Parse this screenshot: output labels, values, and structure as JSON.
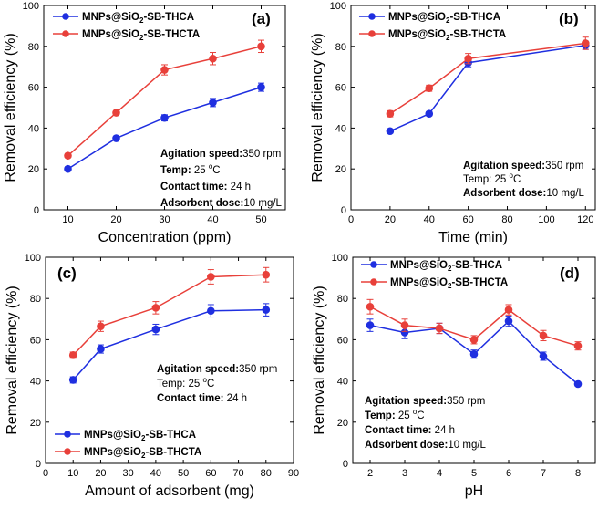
{
  "colors": {
    "thca": "#1f2fe0",
    "thcta": "#e8403a"
  },
  "chart_data": [
    {
      "id": "a",
      "type": "line",
      "panel_label": "(a)",
      "xlabel": "Concentration (ppm)",
      "ylabel": "Removal efficiency (%)",
      "xlim": [
        5,
        55
      ],
      "ylim": [
        0,
        100
      ],
      "xticks": [
        10,
        20,
        30,
        40,
        50
      ],
      "yticks": [
        0,
        20,
        40,
        60,
        80,
        100
      ],
      "x": [
        10,
        20,
        30,
        40,
        50
      ],
      "series": [
        {
          "name_pre": "MNPs@SiO",
          "name_sub": "2",
          "name_post": "-SB-THCA",
          "color_key": "thca",
          "values": [
            20,
            35,
            45,
            52.5,
            60
          ],
          "errors": [
            1,
            1,
            1.5,
            2,
            2
          ]
        },
        {
          "name_pre": "MNPs@SiO",
          "name_sub": "2",
          "name_post": "-SB-THCTA",
          "color_key": "thcta",
          "values": [
            26.5,
            47.5,
            68.5,
            74,
            80
          ],
          "errors": [
            1,
            1,
            2.5,
            3,
            3
          ]
        }
      ],
      "legend": "top-left",
      "conditions": [
        {
          "label": "Agitation speed:",
          "value": "350 rpm"
        },
        {
          "label": "Temp:",
          "value": " 25 ",
          "deg": "o",
          "unit": "C"
        },
        {
          "label": "Contact time:",
          "value": " 24 h"
        },
        {
          "label": "Adsorbent dose:",
          "value": "10 mg/L"
        }
      ]
    },
    {
      "id": "b",
      "type": "line",
      "panel_label": "(b)",
      "xlabel": "Time (min)",
      "ylabel": "Removal efficiency (%)",
      "xlim": [
        0,
        125
      ],
      "ylim": [
        0,
        100
      ],
      "xticks": [
        0,
        20,
        40,
        60,
        80,
        100,
        120
      ],
      "yticks": [
        0,
        20,
        40,
        60,
        80,
        100
      ],
      "x": [
        20,
        40,
        60,
        120
      ],
      "series": [
        {
          "name_pre": "MNPs@SiO",
          "name_sub": "2",
          "name_post": "-SB-THCA",
          "color_key": "thca",
          "values": [
            38.5,
            47,
            72,
            80.5
          ],
          "errors": [
            1,
            1,
            2,
            2
          ]
        },
        {
          "name_pre": "MNPs@SiO",
          "name_sub": "2",
          "name_post": "-SB-THCTA",
          "color_key": "thcta",
          "values": [
            47,
            59.5,
            74,
            81.5
          ],
          "errors": [
            1.5,
            1.5,
            2.5,
            3
          ]
        }
      ],
      "legend": "top-left",
      "conditions": [
        {
          "label": "Agitation speed:",
          "value": "350 rpm"
        },
        {
          "label": "Temp:",
          "value": " 25 ",
          "deg": "o",
          "unit": "C",
          "plain_label": true
        },
        {
          "label": "Adsorbent dose:",
          "value": "10 mg/L"
        }
      ]
    },
    {
      "id": "c",
      "type": "line",
      "panel_label": "(c)",
      "xlabel": "Amount of adsorbent (mg)",
      "ylabel": "Removal efficiency (%)",
      "xlim": [
        0,
        90
      ],
      "ylim": [
        0,
        100
      ],
      "xticks": [
        0,
        10,
        20,
        30,
        40,
        50,
        60,
        70,
        80,
        90
      ],
      "yticks": [
        0,
        20,
        40,
        60,
        80,
        100
      ],
      "x": [
        10,
        20,
        40,
        60,
        80
      ],
      "series": [
        {
          "name_pre": "MNPs@SiO",
          "name_sub": "2",
          "name_post": "-SB-THCA",
          "color_key": "thca",
          "values": [
            40.5,
            55.5,
            65,
            74,
            74.5
          ],
          "errors": [
            1.5,
            2,
            2.5,
            3,
            3
          ]
        },
        {
          "name_pre": "MNPs@SiO",
          "name_sub": "2",
          "name_post": "-SB-THCTA",
          "color_key": "thcta",
          "values": [
            52.5,
            66.5,
            75.5,
            90.5,
            91.5
          ],
          "errors": [
            1.5,
            2.5,
            3,
            3.5,
            3.5
          ]
        }
      ],
      "legend": "bottom-left",
      "conditions": [
        {
          "label": "Agitation speed:",
          "value": "350 rpm"
        },
        {
          "label": "Temp:",
          "value": " 25 ",
          "deg": "o",
          "unit": "C",
          "plain_label": true
        },
        {
          "label": "Contact time:",
          "value": " 24 h"
        }
      ]
    },
    {
      "id": "d",
      "type": "line",
      "panel_label": "(d)",
      "xlabel": "pH",
      "ylabel": "Removal efficiency (%)",
      "xlim": [
        1.5,
        8.5
      ],
      "ylim": [
        0,
        100
      ],
      "xticks": [
        2,
        3,
        4,
        5,
        6,
        7,
        8
      ],
      "yticks": [
        0,
        20,
        40,
        60,
        80,
        100
      ],
      "x": [
        2,
        3,
        4,
        5,
        6,
        7,
        8
      ],
      "series": [
        {
          "name_pre": "MNPs@SiO",
          "name_sub": "2",
          "name_post": "-SB-THCA",
          "color_key": "thca",
          "values": [
            67,
            63.5,
            65.5,
            53,
            69,
            52,
            38.5
          ],
          "errors": [
            3,
            3,
            2.5,
            2,
            2.5,
            2,
            1
          ]
        },
        {
          "name_pre": "MNPs@SiO",
          "name_sub": "2",
          "name_post": "-SB-THCTA",
          "color_key": "thcta",
          "values": [
            76,
            67,
            65.5,
            60,
            74.5,
            62,
            57
          ],
          "errors": [
            3.5,
            3,
            2.5,
            2,
            2.5,
            2.5,
            2
          ]
        }
      ],
      "legend": "top-left",
      "conditions": [
        {
          "label": "Agitation speed:",
          "value": "350 rpm"
        },
        {
          "label": "Temp:",
          "value": " 25 ",
          "deg": "o",
          "unit": "C"
        },
        {
          "label": "Contact time:",
          "value": " 24 h"
        },
        {
          "label": "Adsorbent dose:",
          "value": "10 mg/L"
        }
      ]
    }
  ]
}
